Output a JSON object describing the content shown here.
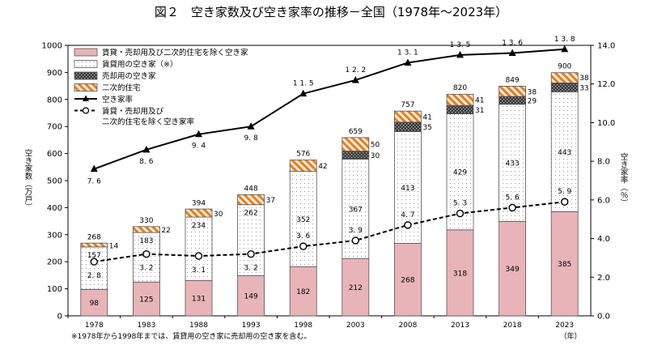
{
  "chart_data": {
    "type": "bar",
    "title": "図２　空き家数及び空き家率の推移－全国（1978年～2023年）",
    "categories": [
      "1978",
      "1983",
      "1988",
      "1993",
      "1998",
      "2003",
      "2008",
      "2013",
      "2018",
      "2023"
    ],
    "x_unit": "（年）",
    "series": [
      {
        "name": "賃貸・売却用及び二次的住宅を除く空き家",
        "color": "#e8b4b8",
        "values": [
          98,
          125,
          131,
          149,
          182,
          212,
          268,
          318,
          349,
          385
        ]
      },
      {
        "name": "賃貸用の空き家（※）",
        "color": "#ffffff",
        "values": [
          157,
          183,
          234,
          262,
          352,
          367,
          413,
          429,
          433,
          443
        ]
      },
      {
        "name": "売却用の空き家",
        "color": "#444444",
        "values": [
          null,
          null,
          null,
          null,
          null,
          30,
          35,
          31,
          29,
          33
        ]
      },
      {
        "name": "二次的住宅",
        "color": "#d9822b",
        "values": [
          14,
          22,
          30,
          37,
          42,
          50,
          41,
          41,
          38,
          38
        ]
      }
    ],
    "totals": [
      268,
      330,
      394,
      448,
      576,
      659,
      757,
      820,
      849,
      900
    ],
    "line_series": [
      {
        "name": "空き家率",
        "values": [
          7.6,
          8.6,
          9.4,
          9.8,
          11.5,
          12.2,
          13.1,
          13.5,
          13.6,
          13.8
        ]
      },
      {
        "name": "賃貸・売却用及び",
        "name2": "二次的住宅を除く空き家率",
        "values": [
          2.8,
          3.2,
          3.1,
          3.2,
          3.6,
          3.9,
          4.7,
          5.3,
          5.6,
          5.9
        ]
      }
    ],
    "ylabel": "空き家数（万戸）",
    "y2label": "空き家率（％）",
    "ylim": [
      0,
      1000
    ],
    "yticks": [
      "0",
      "100",
      "200",
      "300",
      "400",
      "500",
      "600",
      "700",
      "800",
      "900",
      "1000"
    ],
    "y2lim": [
      0,
      14
    ],
    "y2ticks": [
      "0.0",
      "2.0",
      "4.0",
      "6.0",
      "8.0",
      "10.0",
      "12.0",
      "14.0"
    ],
    "legend_position": "top-left",
    "grid": false,
    "footnote": "※1978年から1998年までは、賃貸用の空き家に売却用の空き家を含む。"
  }
}
